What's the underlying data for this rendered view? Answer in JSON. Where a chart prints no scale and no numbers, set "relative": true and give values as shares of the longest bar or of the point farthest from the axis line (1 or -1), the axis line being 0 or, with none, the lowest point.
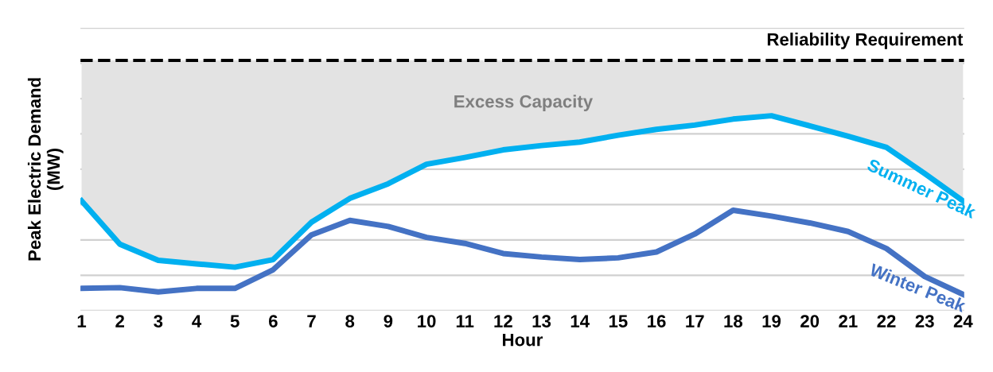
{
  "chart_data": {
    "type": "line",
    "relative": true,
    "xlabel": "Hour",
    "ylabel": "Peak Electric Demand\n(MW)",
    "categories": [
      "1",
      "2",
      "3",
      "4",
      "5",
      "6",
      "7",
      "8",
      "9",
      "10",
      "11",
      "12",
      "13",
      "14",
      "15",
      "16",
      "17",
      "18",
      "19",
      "20",
      "21",
      "22",
      "23",
      "24"
    ],
    "series": [
      {
        "name": "Summer Peak",
        "color": "#00b0f0",
        "values": [
          0.563,
          0.341,
          0.258,
          0.24,
          0.223,
          0.262,
          0.454,
          0.576,
          0.651,
          0.751,
          0.786,
          0.825,
          0.847,
          0.865,
          0.9,
          0.93,
          0.952,
          0.983,
          1,
          0.948,
          0.895,
          0.838,
          0.703,
          0.563
        ],
        "lower": [
          0.563,
          0.341,
          0.258,
          0.24,
          0.223,
          0.262,
          0.454,
          0.576,
          0.651,
          0.751,
          0.786,
          0.825,
          0.847,
          0.865,
          0.9,
          0.93,
          0.952,
          0.983,
          1,
          0.948,
          0.895,
          0.838,
          0.703,
          0.563
        ],
        "upper": [
          1.284,
          1.284,
          1.284,
          1.284,
          1.284,
          1.284,
          1.284,
          1.284,
          1.284,
          1.284,
          1.284,
          1.284,
          1.284,
          1.284,
          1.284,
          1.284,
          1.284,
          1.284,
          1.284,
          1.284,
          1.284,
          1.284,
          1.284,
          1.284
        ]
      },
      {
        "name": "Winter Peak",
        "color": "#4472c4",
        "values": [
          0.114,
          0.118,
          0.096,
          0.114,
          0.114,
          0.21,
          0.389,
          0.463,
          0.432,
          0.376,
          0.345,
          0.293,
          0.275,
          0.262,
          0.271,
          0.301,
          0.393,
          0.515,
          0.485,
          0.45,
          0.406,
          0.319,
          0.175,
          0.083
        ]
      }
    ],
    "ref_lines": [
      {
        "axis": "y",
        "value": 1.284,
        "label": "Reliability Requirement",
        "color": "#000000",
        "line_style": "dashed"
      }
    ],
    "annotations": [
      "Excess Capacity"
    ],
    "grid": "y",
    "legend": false,
    "marker": "none",
    "line_style": "solid"
  }
}
